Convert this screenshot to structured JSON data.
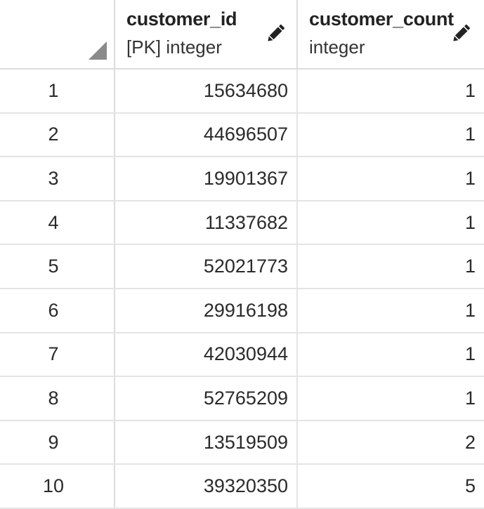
{
  "table": {
    "columns": [
      {
        "name": "customer_id",
        "type": "[PK] integer"
      },
      {
        "name": "customer_count",
        "type": "integer"
      }
    ],
    "rows": [
      {
        "rownum": "1",
        "customer_id": "15634680",
        "customer_count": "1"
      },
      {
        "rownum": "2",
        "customer_id": "44696507",
        "customer_count": "1"
      },
      {
        "rownum": "3",
        "customer_id": "19901367",
        "customer_count": "1"
      },
      {
        "rownum": "4",
        "customer_id": "11337682",
        "customer_count": "1"
      },
      {
        "rownum": "5",
        "customer_id": "52021773",
        "customer_count": "1"
      },
      {
        "rownum": "6",
        "customer_id": "29916198",
        "customer_count": "1"
      },
      {
        "rownum": "7",
        "customer_id": "42030944",
        "customer_count": "1"
      },
      {
        "rownum": "8",
        "customer_id": "52765209",
        "customer_count": "1"
      },
      {
        "rownum": "9",
        "customer_id": "13519509",
        "customer_count": "2"
      },
      {
        "rownum": "10",
        "customer_id": "39320350",
        "customer_count": "5"
      }
    ]
  },
  "icons": {
    "corner": "select-all-triangle-icon",
    "edit": "pencil-icon"
  },
  "colors": {
    "grid_line": "#dcdcdc",
    "corner_triangle": "#8a8a8a",
    "text": "#222222"
  }
}
